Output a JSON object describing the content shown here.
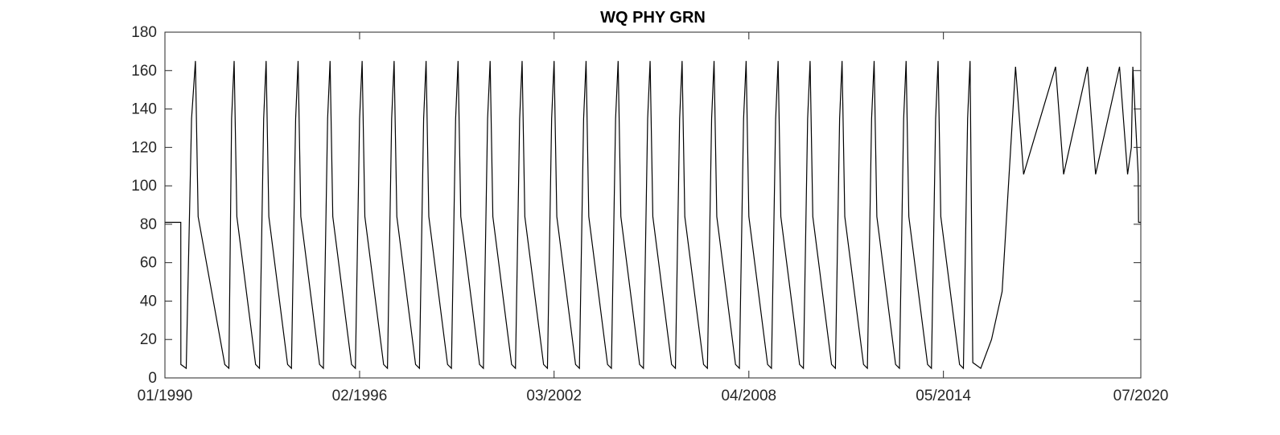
{
  "chart_data": {
    "type": "line",
    "title": "WQ PHY GRN",
    "xlabel": "",
    "ylabel": "",
    "x_axis_type": "date",
    "xlim": [
      "1990-01-01",
      "2020-07-01"
    ],
    "ylim": [
      0,
      180
    ],
    "y_ticks": [
      0,
      20,
      40,
      60,
      80,
      100,
      120,
      140,
      160,
      180
    ],
    "x_ticks": [
      {
        "date": "1990-01-01",
        "label": "01/1990"
      },
      {
        "date": "1996-02-01",
        "label": "02/1996"
      },
      {
        "date": "2002-03-01",
        "label": "03/2002"
      },
      {
        "date": "2008-04-01",
        "label": "04/2008"
      },
      {
        "date": "2014-05-01",
        "label": "05/2014"
      },
      {
        "date": "2020-07-01",
        "label": "07/2020"
      }
    ],
    "grid": false,
    "box": true,
    "line_color": "#000000",
    "series": [
      {
        "name": "",
        "points": [
          [
            "1990-01-01",
            81
          ],
          [
            "1990-07-01",
            81
          ],
          [
            "1990-07-02",
            7
          ],
          [
            "1990-09-01",
            5
          ],
          [
            "1990-11-01",
            135
          ],
          [
            "1990-12-15",
            165
          ],
          [
            "1991-01-15",
            84
          ],
          [
            "1991-11-15",
            7
          ],
          [
            "1992-01-01",
            5
          ],
          [
            "1992-02-01",
            135
          ],
          [
            "1992-03-01",
            165
          ],
          [
            "1992-04-01",
            84
          ],
          [
            "1992-11-01",
            7
          ],
          [
            "1992-12-15",
            5
          ],
          [
            "1993-02-01",
            135
          ],
          [
            "1993-03-01",
            165
          ],
          [
            "1993-04-01",
            84
          ],
          [
            "1993-11-01",
            7
          ],
          [
            "1993-12-15",
            5
          ],
          [
            "1994-02-01",
            135
          ],
          [
            "1994-03-01",
            165
          ],
          [
            "1994-04-01",
            84
          ],
          [
            "1994-11-01",
            7
          ],
          [
            "1994-12-15",
            5
          ],
          [
            "1995-02-01",
            135
          ],
          [
            "1995-03-01",
            165
          ],
          [
            "1995-04-01",
            84
          ],
          [
            "1995-11-01",
            7
          ],
          [
            "1995-12-15",
            5
          ],
          [
            "1996-02-01",
            135
          ],
          [
            "1996-03-01",
            165
          ],
          [
            "1996-04-01",
            84
          ],
          [
            "1996-11-01",
            7
          ],
          [
            "1996-12-15",
            5
          ],
          [
            "1997-02-01",
            135
          ],
          [
            "1997-03-01",
            165
          ],
          [
            "1997-04-01",
            84
          ],
          [
            "1997-11-01",
            7
          ],
          [
            "1997-12-15",
            5
          ],
          [
            "1998-02-01",
            135
          ],
          [
            "1998-03-01",
            165
          ],
          [
            "1998-04-01",
            84
          ],
          [
            "1998-11-01",
            7
          ],
          [
            "1998-12-15",
            5
          ],
          [
            "1999-02-01",
            135
          ],
          [
            "1999-03-01",
            165
          ],
          [
            "1999-04-01",
            84
          ],
          [
            "1999-11-01",
            7
          ],
          [
            "1999-12-15",
            5
          ],
          [
            "2000-02-01",
            135
          ],
          [
            "2000-03-01",
            165
          ],
          [
            "2000-04-01",
            84
          ],
          [
            "2000-11-01",
            7
          ],
          [
            "2000-12-15",
            5
          ],
          [
            "2001-02-01",
            135
          ],
          [
            "2001-03-01",
            165
          ],
          [
            "2001-04-01",
            84
          ],
          [
            "2001-11-01",
            7
          ],
          [
            "2001-12-15",
            5
          ],
          [
            "2002-02-01",
            135
          ],
          [
            "2002-03-01",
            165
          ],
          [
            "2002-04-01",
            84
          ],
          [
            "2002-11-01",
            7
          ],
          [
            "2002-12-15",
            5
          ],
          [
            "2003-02-01",
            135
          ],
          [
            "2003-03-01",
            165
          ],
          [
            "2003-04-01",
            84
          ],
          [
            "2003-11-01",
            7
          ],
          [
            "2003-12-15",
            5
          ],
          [
            "2004-02-01",
            135
          ],
          [
            "2004-03-01",
            165
          ],
          [
            "2004-04-01",
            84
          ],
          [
            "2004-11-01",
            7
          ],
          [
            "2004-12-15",
            5
          ],
          [
            "2005-02-01",
            135
          ],
          [
            "2005-03-01",
            165
          ],
          [
            "2005-04-01",
            84
          ],
          [
            "2005-11-01",
            7
          ],
          [
            "2005-12-15",
            5
          ],
          [
            "2006-02-01",
            135
          ],
          [
            "2006-03-01",
            165
          ],
          [
            "2006-04-01",
            84
          ],
          [
            "2006-11-01",
            7
          ],
          [
            "2006-12-15",
            5
          ],
          [
            "2007-02-01",
            135
          ],
          [
            "2007-03-01",
            165
          ],
          [
            "2007-04-01",
            84
          ],
          [
            "2007-11-01",
            7
          ],
          [
            "2007-12-15",
            5
          ],
          [
            "2008-02-01",
            135
          ],
          [
            "2008-03-01",
            165
          ],
          [
            "2008-04-01",
            84
          ],
          [
            "2008-11-01",
            7
          ],
          [
            "2008-12-15",
            5
          ],
          [
            "2009-02-01",
            135
          ],
          [
            "2009-03-01",
            165
          ],
          [
            "2009-04-01",
            84
          ],
          [
            "2009-11-01",
            7
          ],
          [
            "2009-12-15",
            5
          ],
          [
            "2010-02-01",
            135
          ],
          [
            "2010-03-01",
            165
          ],
          [
            "2010-04-01",
            84
          ],
          [
            "2010-11-01",
            7
          ],
          [
            "2010-12-15",
            5
          ],
          [
            "2011-02-01",
            135
          ],
          [
            "2011-03-01",
            165
          ],
          [
            "2011-04-01",
            84
          ],
          [
            "2011-11-01",
            7
          ],
          [
            "2011-12-15",
            5
          ],
          [
            "2012-02-01",
            135
          ],
          [
            "2012-03-01",
            165
          ],
          [
            "2012-04-01",
            84
          ],
          [
            "2012-11-01",
            7
          ],
          [
            "2012-12-15",
            5
          ],
          [
            "2013-02-01",
            135
          ],
          [
            "2013-03-01",
            165
          ],
          [
            "2013-04-01",
            84
          ],
          [
            "2013-11-01",
            7
          ],
          [
            "2013-12-15",
            5
          ],
          [
            "2014-02-01",
            135
          ],
          [
            "2014-03-01",
            165
          ],
          [
            "2014-04-01",
            84
          ],
          [
            "2014-11-01",
            7
          ],
          [
            "2014-12-15",
            5
          ],
          [
            "2015-02-01",
            135
          ],
          [
            "2015-03-01",
            165
          ],
          [
            "2015-04-01",
            8
          ],
          [
            "2015-07-01",
            5
          ],
          [
            "2015-11-01",
            20
          ],
          [
            "2016-03-01",
            45
          ],
          [
            "2016-08-01",
            162
          ],
          [
            "2016-11-01",
            106
          ],
          [
            "2017-11-01",
            162
          ],
          [
            "2018-02-01",
            106
          ],
          [
            "2018-11-01",
            162
          ],
          [
            "2019-02-01",
            106
          ],
          [
            "2019-11-01",
            162
          ],
          [
            "2020-02-01",
            106
          ],
          [
            "2020-03-15",
            120
          ],
          [
            "2020-04-01",
            162
          ],
          [
            "2020-06-01",
            106
          ],
          [
            "2020-06-05",
            81
          ],
          [
            "2020-07-01",
            81
          ]
        ]
      }
    ]
  }
}
